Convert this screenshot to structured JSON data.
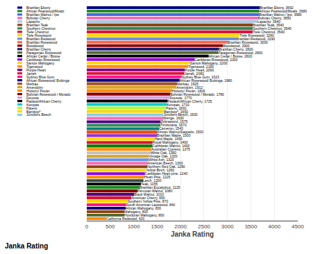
{
  "chart_data": {
    "type": "bar",
    "orientation": "horizontal",
    "xlabel": "Janka Rating",
    "categories": [
      "Brazilian Ebony",
      "African Pearwood/Moabi",
      "Brazilian Walnut / Ipe",
      "Bolivian Cherry",
      "Lapacho",
      "Brazilian Teak",
      "Southern Chestnut",
      "Tiele Chestnut",
      "Tiele Rosewood",
      "Brazilian Redwood",
      "Brazilian Rosewood",
      "Bloodwood",
      "Brazilian Cherry",
      "Patagonian Rosewood",
      "African Cedar / Bosse",
      "Caribbean Rosewood",
      "Santos Mahogany",
      "Tigerwood",
      "Purple Heart",
      "Jarrah",
      "Sydney Blue Gum",
      "African Rosewood/ Bubinga",
      "Merbau",
      "Amendoim",
      "Hickory/ Pecan",
      "Bolivian Rosewood / Morado",
      "Doussie",
      "Padauk/African Cherry",
      "Kempas",
      "Patens",
      "Bamboo*",
      "Junckers Beech",
      "Wenge",
      "Zebrawood",
      "Timborana",
      "Cameron",
      "African Walnut/Sappelis",
      "Brazilian Maple",
      "Hard Maple",
      "Royal Mahogany",
      "Caribbean Walnut",
      "Australian Cypress",
      "White Oak",
      "Vintage Oak",
      "White Ash",
      "American Beech",
      "Northern Red Oak",
      "Yellow Birch",
      "Caribbean Heart pine",
      "Heart Pine",
      "Larch",
      "Teak",
      "Brazilian Eucalyptus",
      "Peruvian Walnut",
      "Black Walnut",
      "American Cherry",
      "Southern Yellow Pine",
      "South American Lacewood",
      "African Mahogany",
      "Mahogany",
      "Honduran Mahogany",
      "California Redwood"
    ],
    "values": [
      3692,
      3680,
      3680,
      3650,
      3640,
      3540,
      3540,
      3540,
      3260,
      3190,
      3000,
      2900,
      2820,
      2800,
      2600,
      2300,
      2200,
      2160,
      2090,
      2082,
      2023,
      1980,
      1925,
      1912,
      1820,
      1780,
      1770,
      1725,
      1710,
      1691,
      1650,
      1630,
      1630,
      1575,
      1570,
      1543,
      1500,
      1500,
      1450,
      1400,
      1400,
      1375,
      1360,
      1320,
      1320,
      1300,
      1290,
      1260,
      1240,
      1225,
      1200,
      1155,
      1125,
      1080,
      1010,
      950,
      870,
      840,
      830,
      800,
      800,
      420
    ],
    "value_labels": [
      "Brazilian Ebony, 3692",
      "African Pearwood/Moabi, 3680",
      "Brazilian Walnut / Ipe, 3680",
      "Bolivian Cherry, 3650",
      "Lapacho, 3640",
      "Brazilian Teak, 3540",
      "Southern Chestnut, 3540",
      "Tiele Chestnut, 3540",
      "Tiele Rosewood, 3260",
      "Brazilian Redwood, 3190",
      "Brazilian Rosewood, 3000",
      "Bloodwood, 2900",
      "Brazilian Cherry, 2820",
      "Patagonian Rosewood, 2800",
      "African Cedar / Bosse, 2600",
      "Caribbean Rosewood, 2300",
      "Santos Mahogany, 2200",
      "Tigerwood, 2160",
      "Purple Heart, 2090",
      "Jarrah, 2082",
      "Sydney Blue Gum, 2023",
      "African Rosewood/ Bubinga, 1980",
      "Merbau, 1925",
      "Amendoim, 1912",
      "Hickory/ Pecan, 1820",
      "Bolivian Rosewood / Morado, 1780",
      "Doussie, 1770",
      "Padauk/African Cherry, 1725",
      "Kempas, 1710",
      "Patens, 1691",
      "Bamboo*, 1650",
      "Junckers Beech, 1630",
      "Wenge, 1630",
      "Zebrawood, 1575",
      "Timborana, 1570",
      "Cameron, 1543",
      "African Walnut/Sappelis, 1500",
      "Brazilian Maple, 1500",
      "Hard Maple, 1450",
      "Royal Mahogany, 1400",
      "Caribbean Walnut, 1400",
      "Australian Cypress, 1375",
      "White Oak, 1360",
      "Vintage Oak, 1320",
      "White Ash, 1320",
      "American Beech, 1300",
      "Northern Red Oak, 1290",
      "Yellow Birch, 1260",
      "Caribbean Heart pine, 1240",
      "Heart Pine, 1225",
      "Larch, 1200",
      "Teak, 1155",
      "Brazilian Eucalyptus, 1125",
      "Peruvian Walnut, 1080",
      "Black Walnut, 1010",
      "American Cherry, 950",
      "Southern Yellow Pine, 870",
      "South American Lacewood, 840",
      "African Mahogany, 830",
      "Mahogany, 800",
      "Honduran Mahogany, 800",
      "California Redwood, 420"
    ],
    "colors": [
      "#000080",
      "#228B22",
      "#4169E1",
      "#FF69B4",
      "#B0C4DE",
      "#8B4513",
      "#2E8B57",
      "#DC143C",
      "#FFD700",
      "#6495ED",
      "#FF6347",
      "#8B0000",
      "#191970",
      "#556B2F",
      "#000000",
      "#9400D3",
      "#FFD700",
      "#FF8C00",
      "#800080",
      "#DC143C",
      "#FF1493",
      "#000080",
      "#A0522D",
      "#DAA520",
      "#FF8C00",
      "#8B0000",
      "#DDA0DD",
      "#000000",
      "#00CED1",
      "#ADFF2F",
      "#FFD700",
      "#87CEEB",
      "#FF69B4",
      "#4B0082",
      "#2E8B57",
      "#008080",
      "#FF4500",
      "#9932CC",
      "#FFD700",
      "#DC143C",
      "#008000",
      "#FF8C00",
      "#C0C0C0",
      "#DAA520",
      "#6495ED",
      "#FF69B4",
      "#8B4513",
      "#FFD700",
      "#9400D3",
      "#FF8C00",
      "#2F4F4F",
      "#000000",
      "#228B22",
      "#8B0000",
      "#4B0082",
      "#DC143C",
      "#FFD700",
      "#FF1493",
      "#000080",
      "#8B4513",
      "#556B2F",
      "#FF8C00"
    ],
    "xlim": [
      0,
      4500
    ],
    "xticks": [
      0,
      500,
      1000,
      1500,
      2000,
      2500,
      3000,
      3500,
      4000,
      4500
    ],
    "grid": true,
    "data_labels": true,
    "tick_labels": "x",
    "annotations": [
      {
        "text": "Janka Rating"
      },
      {
        "text": "Brazilian Ebony",
        "color": "#000080"
      },
      {
        "text": "African Pearwood/Moabi",
        "color": "#228B22"
      },
      {
        "text": "Brazilian Walnut / Ipe",
        "color": "#4169E1"
      },
      {
        "text": "Bolivian Cherry",
        "color": "#FF69B4"
      },
      {
        "text": "Lapacho",
        "color": "#B0C4DE"
      },
      {
        "text": "Brazilian Teak",
        "color": "#8B4513"
      },
      {
        "text": "Southern Chestnut",
        "color": "#2E8B57"
      },
      {
        "text": "Tiele Chestnut",
        "color": "#DC143C"
      },
      {
        "text": "Tiele Rosewood",
        "color": "#FFD700"
      },
      {
        "text": "Brazilian Redwood",
        "color": "#6495ED"
      },
      {
        "text": "Brazilian Rosewood",
        "color": "#FF6347"
      },
      {
        "text": "Bloodwood",
        "color": "#8B0000"
      },
      {
        "text": "Brazilian Cherry",
        "color": "#191970"
      },
      {
        "text": "Patagonian Rosewood",
        "color": "#556B2F"
      },
      {
        "text": "African Cedar / Bosse",
        "color": "#000000"
      },
      {
        "text": "Caribbean Rosewood",
        "color": "#9400D3"
      },
      {
        "text": "Santos Mahogany",
        "color": "#FFD700"
      },
      {
        "text": "Tigerwood",
        "color": "#FF8C00"
      },
      {
        "text": "Purple Heart",
        "color": "#800080"
      },
      {
        "text": "Jarrah",
        "color": "#DC143C"
      },
      {
        "text": "Sydney Blue Gum",
        "color": "#FF1493"
      },
      {
        "text": "African Rosewood/\nBubinga",
        "color": "#000080"
      },
      {
        "text": "Merbau",
        "color": "#A0522D"
      },
      {
        "text": "Amendoim",
        "color": "#DAA520"
      },
      {
        "text": "Hickory/ Pecan",
        "color": "#FF8C00"
      },
      {
        "text": "Bolivian Rosewood /\nMorado",
        "color": "#8B0000"
      },
      {
        "text": "Doussie",
        "color": "#DDA0DD"
      },
      {
        "text": "Padauk/African Cherry",
        "color": "#000000"
      },
      {
        "text": "Kempas",
        "color": "#00CED1"
      },
      {
        "text": "Patens",
        "color": "#ADFF2F"
      },
      {
        "text": "Bamboo*",
        "color": "#FFD700"
      },
      {
        "text": "Junckers Beech",
        "color": "#87CEEB"
      }
    ]
  }
}
